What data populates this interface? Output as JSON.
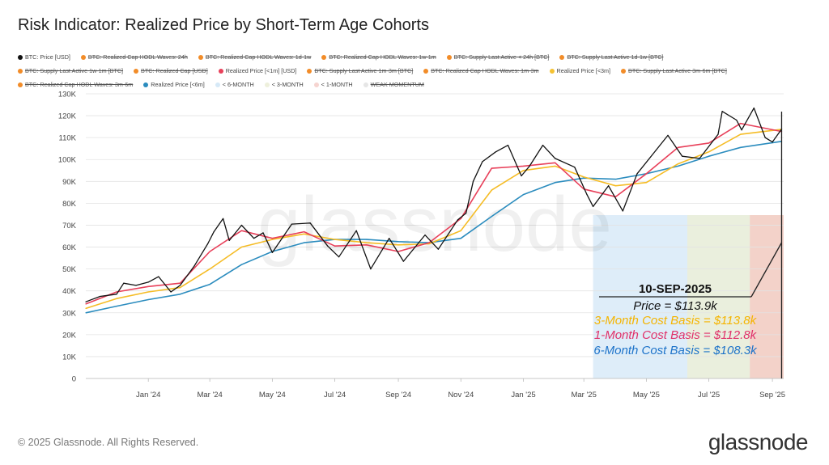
{
  "title": "Risk Indicator: Realized Price by Short-Term Age Cohorts",
  "legend": [
    [
      {
        "label": "BTC: Price [USD]",
        "color": "#111111",
        "active": true
      },
      {
        "label": "BTC: Realized Cap HODL Waves: 24h",
        "color": "#f28c28",
        "active": false
      },
      {
        "label": "BTC: Realized Cap HODL Waves: 1d-1w",
        "color": "#f28c28",
        "active": false
      },
      {
        "label": "BTC: Realized Cap HODL Waves: 1w-1m",
        "color": "#f28c28",
        "active": false
      },
      {
        "label": "BTC: Supply Last Active < 24h [BTC]",
        "color": "#f28c28",
        "active": false
      },
      {
        "label": "BTC: Supply Last Active 1d-1w [BTC]",
        "color": "#f28c28",
        "active": false
      }
    ],
    [
      {
        "label": "BTC: Supply Last Active 1w-1m [BTC]",
        "color": "#f28c28",
        "active": false
      },
      {
        "label": "BTC: Realized Cap [USD]",
        "color": "#f28c28",
        "active": false
      },
      {
        "label": "Realized Price [<1m] [USD]",
        "color": "#e8405a",
        "active": true
      },
      {
        "label": "BTC: Supply Last Active 1m-3m [BTC]",
        "color": "#f28c28",
        "active": false
      },
      {
        "label": "BTC: Realized Cap HODL Waves: 1m-3m",
        "color": "#f28c28",
        "active": false
      },
      {
        "label": "Realized Price [<3m]",
        "color": "#f5c231",
        "active": true
      },
      {
        "label": "BTC: Supply Last Active 3m-6m [BTC]",
        "color": "#f28c28",
        "active": false
      }
    ],
    [
      {
        "label": "BTC: Realized Cap HODL Waves: 3m-6m",
        "color": "#f28c28",
        "active": false
      },
      {
        "label": "Realized Price [<6m]",
        "color": "#2b8cbe",
        "active": true
      },
      {
        "label": "< 6-MONTH",
        "color": "#d6e9f7",
        "active": true
      },
      {
        "label": "< 3-MONTH",
        "color": "#eef0dc",
        "active": true
      },
      {
        "label": "< 1-MONTH",
        "color": "#f6d4d0",
        "active": true
      },
      {
        "label": "WEAK MOMENTUM",
        "color": "#e6e6e6",
        "active": false
      }
    ]
  ],
  "chart_data": {
    "type": "line",
    "title": "Risk Indicator: Realized Price by Short-Term Age Cohorts",
    "y_ticks": [
      "0",
      "10K",
      "20K",
      "30K",
      "40K",
      "50K",
      "60K",
      "70K",
      "80K",
      "90K",
      "100K",
      "110K",
      "120K",
      "130K"
    ],
    "ylim": [
      0,
      130000
    ],
    "x_ticks": [
      {
        "label": "Jan '24",
        "date": "2024-01-01"
      },
      {
        "label": "Mar '24",
        "date": "2024-03-01"
      },
      {
        "label": "May '24",
        "date": "2024-05-01"
      },
      {
        "label": "Jul '24",
        "date": "2024-07-01"
      },
      {
        "label": "Sep '24",
        "date": "2024-09-01"
      },
      {
        "label": "Nov '24",
        "date": "2024-11-01"
      },
      {
        "label": "Jan '25",
        "date": "2025-01-01"
      },
      {
        "label": "Mar '25",
        "date": "2025-03-01"
      },
      {
        "label": "May '25",
        "date": "2025-05-01"
      },
      {
        "label": "Jul '25",
        "date": "2025-07-01"
      },
      {
        "label": "Sep '25",
        "date": "2025-09-01"
      }
    ],
    "xlim": [
      "2023-11-01",
      "2025-09-12"
    ],
    "bands": [
      {
        "name": "< 6-MONTH",
        "start": "2025-03-10",
        "end": "2025-09-12",
        "color": "#d8eaf8"
      },
      {
        "name": "< 3-MONTH",
        "start": "2025-06-10",
        "end": "2025-09-12",
        "color": "#ecefd8"
      },
      {
        "name": "< 1-MONTH",
        "start": "2025-08-10",
        "end": "2025-09-12",
        "color": "#f4cdc6"
      }
    ],
    "series": [
      {
        "name": "Realized Price [<6m]",
        "color": "#2b8cbe",
        "width": 1.6,
        "points": [
          [
            "2023-11-01",
            30000
          ],
          [
            "2023-12-01",
            33000
          ],
          [
            "2024-01-01",
            36000
          ],
          [
            "2024-02-01",
            38500
          ],
          [
            "2024-03-01",
            43000
          ],
          [
            "2024-04-01",
            52000
          ],
          [
            "2024-05-01",
            58000
          ],
          [
            "2024-06-01",
            62000
          ],
          [
            "2024-07-01",
            63500
          ],
          [
            "2024-08-01",
            63500
          ],
          [
            "2024-09-01",
            62500
          ],
          [
            "2024-10-01",
            62000
          ],
          [
            "2024-11-01",
            64000
          ],
          [
            "2024-12-01",
            74000
          ],
          [
            "2025-01-01",
            84000
          ],
          [
            "2025-02-01",
            89500
          ],
          [
            "2025-03-01",
            91500
          ],
          [
            "2025-04-01",
            91000
          ],
          [
            "2025-05-01",
            93500
          ],
          [
            "2025-06-01",
            97000
          ],
          [
            "2025-07-01",
            101500
          ],
          [
            "2025-08-01",
            105500
          ],
          [
            "2025-09-10",
            108300
          ]
        ]
      },
      {
        "name": "Realized Price [<3m]",
        "color": "#f5bc25",
        "width": 1.6,
        "points": [
          [
            "2023-11-01",
            32000
          ],
          [
            "2023-12-01",
            36500
          ],
          [
            "2024-01-01",
            39500
          ],
          [
            "2024-02-01",
            41500
          ],
          [
            "2024-03-01",
            50000
          ],
          [
            "2024-04-01",
            60000
          ],
          [
            "2024-05-01",
            63500
          ],
          [
            "2024-06-01",
            66000
          ],
          [
            "2024-07-01",
            63500
          ],
          [
            "2024-08-01",
            62000
          ],
          [
            "2024-09-01",
            61000
          ],
          [
            "2024-10-01",
            61500
          ],
          [
            "2024-11-01",
            67500
          ],
          [
            "2024-12-01",
            86000
          ],
          [
            "2025-01-01",
            95000
          ],
          [
            "2025-02-01",
            97000
          ],
          [
            "2025-03-01",
            92000
          ],
          [
            "2025-04-01",
            88000
          ],
          [
            "2025-05-01",
            89500
          ],
          [
            "2025-06-01",
            98000
          ],
          [
            "2025-07-01",
            103500
          ],
          [
            "2025-08-01",
            111500
          ],
          [
            "2025-09-10",
            113800
          ]
        ]
      },
      {
        "name": "Realized Price [<1m]",
        "color": "#e8405a",
        "width": 1.6,
        "points": [
          [
            "2023-11-01",
            34000
          ],
          [
            "2023-12-01",
            39500
          ],
          [
            "2024-01-01",
            42000
          ],
          [
            "2024-02-01",
            43500
          ],
          [
            "2024-03-01",
            58000
          ],
          [
            "2024-04-01",
            67500
          ],
          [
            "2024-05-01",
            64000
          ],
          [
            "2024-06-01",
            67000
          ],
          [
            "2024-07-01",
            60500
          ],
          [
            "2024-08-01",
            61000
          ],
          [
            "2024-09-01",
            58000
          ],
          [
            "2024-10-01",
            62000
          ],
          [
            "2024-11-01",
            73000
          ],
          [
            "2024-12-01",
            96000
          ],
          [
            "2025-01-01",
            97000
          ],
          [
            "2025-02-01",
            98500
          ],
          [
            "2025-03-01",
            86500
          ],
          [
            "2025-04-01",
            83000
          ],
          [
            "2025-05-01",
            93500
          ],
          [
            "2025-06-01",
            105500
          ],
          [
            "2025-07-01",
            107500
          ],
          [
            "2025-08-01",
            116500
          ],
          [
            "2025-09-10",
            112800
          ]
        ]
      },
      {
        "name": "BTC: Price [USD]",
        "color": "#111111",
        "width": 1.3,
        "points": [
          [
            "2023-11-01",
            35000
          ],
          [
            "2023-11-15",
            37500
          ],
          [
            "2023-12-01",
            38500
          ],
          [
            "2023-12-08",
            43500
          ],
          [
            "2023-12-20",
            42500
          ],
          [
            "2024-01-01",
            44000
          ],
          [
            "2024-01-11",
            46500
          ],
          [
            "2024-01-23",
            39500
          ],
          [
            "2024-02-01",
            42500
          ],
          [
            "2024-02-15",
            51500
          ],
          [
            "2024-02-28",
            61500
          ],
          [
            "2024-03-05",
            67000
          ],
          [
            "2024-03-14",
            73000
          ],
          [
            "2024-03-20",
            63000
          ],
          [
            "2024-04-01",
            70000
          ],
          [
            "2024-04-13",
            64000
          ],
          [
            "2024-04-22",
            66500
          ],
          [
            "2024-05-01",
            57500
          ],
          [
            "2024-05-20",
            70500
          ],
          [
            "2024-06-07",
            71000
          ],
          [
            "2024-06-24",
            60500
          ],
          [
            "2024-07-05",
            55500
          ],
          [
            "2024-07-22",
            67500
          ],
          [
            "2024-08-05",
            50000
          ],
          [
            "2024-08-23",
            64000
          ],
          [
            "2024-09-06",
            53500
          ],
          [
            "2024-09-27",
            65500
          ],
          [
            "2024-10-10",
            59000
          ],
          [
            "2024-10-29",
            72500
          ],
          [
            "2024-11-06",
            75500
          ],
          [
            "2024-11-13",
            90000
          ],
          [
            "2024-11-22",
            99000
          ],
          [
            "2024-12-05",
            103500
          ],
          [
            "2024-12-17",
            106500
          ],
          [
            "2024-12-30",
            92500
          ],
          [
            "2025-01-07",
            97000
          ],
          [
            "2025-01-20",
            106500
          ],
          [
            "2025-02-01",
            100500
          ],
          [
            "2025-02-20",
            96500
          ],
          [
            "2025-03-04",
            84000
          ],
          [
            "2025-03-10",
            78500
          ],
          [
            "2025-03-25",
            88000
          ],
          [
            "2025-04-08",
            76500
          ],
          [
            "2025-04-22",
            93500
          ],
          [
            "2025-05-10",
            104000
          ],
          [
            "2025-05-22",
            111000
          ],
          [
            "2025-06-05",
            101500
          ],
          [
            "2025-06-22",
            100500
          ],
          [
            "2025-07-10",
            111500
          ],
          [
            "2025-07-14",
            122000
          ],
          [
            "2025-07-28",
            118000
          ],
          [
            "2025-08-02",
            113500
          ],
          [
            "2025-08-14",
            123500
          ],
          [
            "2025-08-25",
            110000
          ],
          [
            "2025-09-01",
            108000
          ],
          [
            "2025-09-10",
            113900
          ]
        ]
      }
    ],
    "annotation": {
      "date": "10-SEP-2025",
      "lines": [
        {
          "text": "Price = $113.9k",
          "color": "#111111"
        },
        {
          "text": "3-Month Cost Basis = $113.8k",
          "color": "#f5b400"
        },
        {
          "text": "1-Month Cost Basis = $112.8k",
          "color": "#e0306a"
        },
        {
          "text": "6-Month Cost Basis =  $108.3k",
          "color": "#1e73c9"
        }
      ]
    },
    "watermark": "glassnode"
  },
  "footer": "© 2025 Glassnode. All Rights Reserved.",
  "brand": "glassnode"
}
